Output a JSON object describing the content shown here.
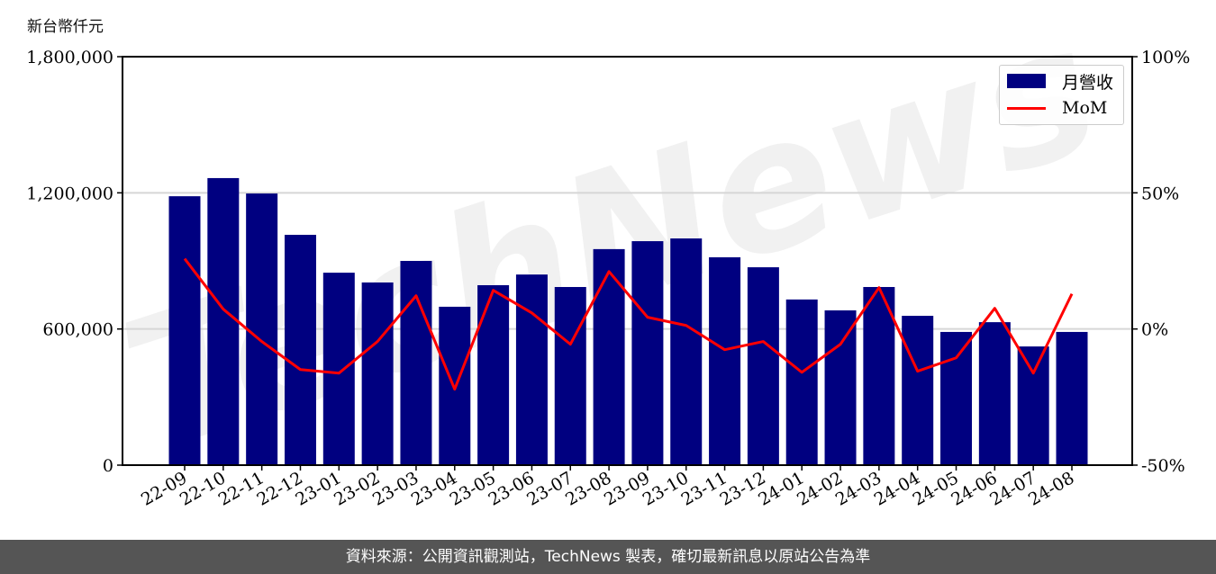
{
  "unit_label": "新台幣仟元",
  "footer": "資料來源：公開資訊觀測站，TechNews 製表，確切最新訊息以原站公告為準",
  "watermark": "TechNews",
  "chart_data": {
    "type": "bar+line",
    "title": "",
    "xlabel": "",
    "ylabel": "新台幣仟元",
    "categories": [
      "22-09",
      "22-10",
      "22-11",
      "22-12",
      "23-01",
      "23-02",
      "23-03",
      "23-04",
      "23-05",
      "23-06",
      "23-07",
      "23-08",
      "23-09",
      "23-10",
      "23-11",
      "23-12",
      "24-01",
      "24-02",
      "24-03",
      "24-04",
      "24-05",
      "24-06",
      "24-07",
      "24-08"
    ],
    "series": [
      {
        "name": "月營收",
        "type": "bar",
        "axis": "left",
        "color": "#000080",
        "values": [
          1185000,
          1265000,
          1197000,
          1015000,
          848000,
          805000,
          900000,
          698000,
          793000,
          840000,
          785000,
          952000,
          987000,
          999000,
          916000,
          872000,
          730000,
          682000,
          785000,
          658000,
          587000,
          630000,
          523000,
          587000
        ]
      },
      {
        "name": "MoM",
        "type": "line",
        "axis": "right",
        "color": "#ff0000",
        "values": [
          25.8,
          7.3,
          -4.6,
          -14.9,
          -16.2,
          -4.6,
          12.2,
          -22.1,
          14.2,
          5.9,
          -5.6,
          21.1,
          4.3,
          1.3,
          -7.6,
          -4.6,
          -15.9,
          -5.6,
          15.2,
          -15.5,
          -10.6,
          7.6,
          -16.2,
          12.9
        ]
      }
    ],
    "y_left": {
      "lim": [
        0,
        1800000
      ],
      "ticks": [
        0,
        600000,
        1200000,
        1800000
      ],
      "tick_labels": [
        "0",
        "600,000",
        "1,200,000",
        "1,800,000"
      ]
    },
    "y_right": {
      "lim": [
        -50,
        100
      ],
      "ticks": [
        -50,
        0,
        50,
        100
      ],
      "tick_labels": [
        "-50%",
        "0%",
        "50%",
        "100%"
      ]
    },
    "grid": "horizontal",
    "legend": "top-right"
  }
}
